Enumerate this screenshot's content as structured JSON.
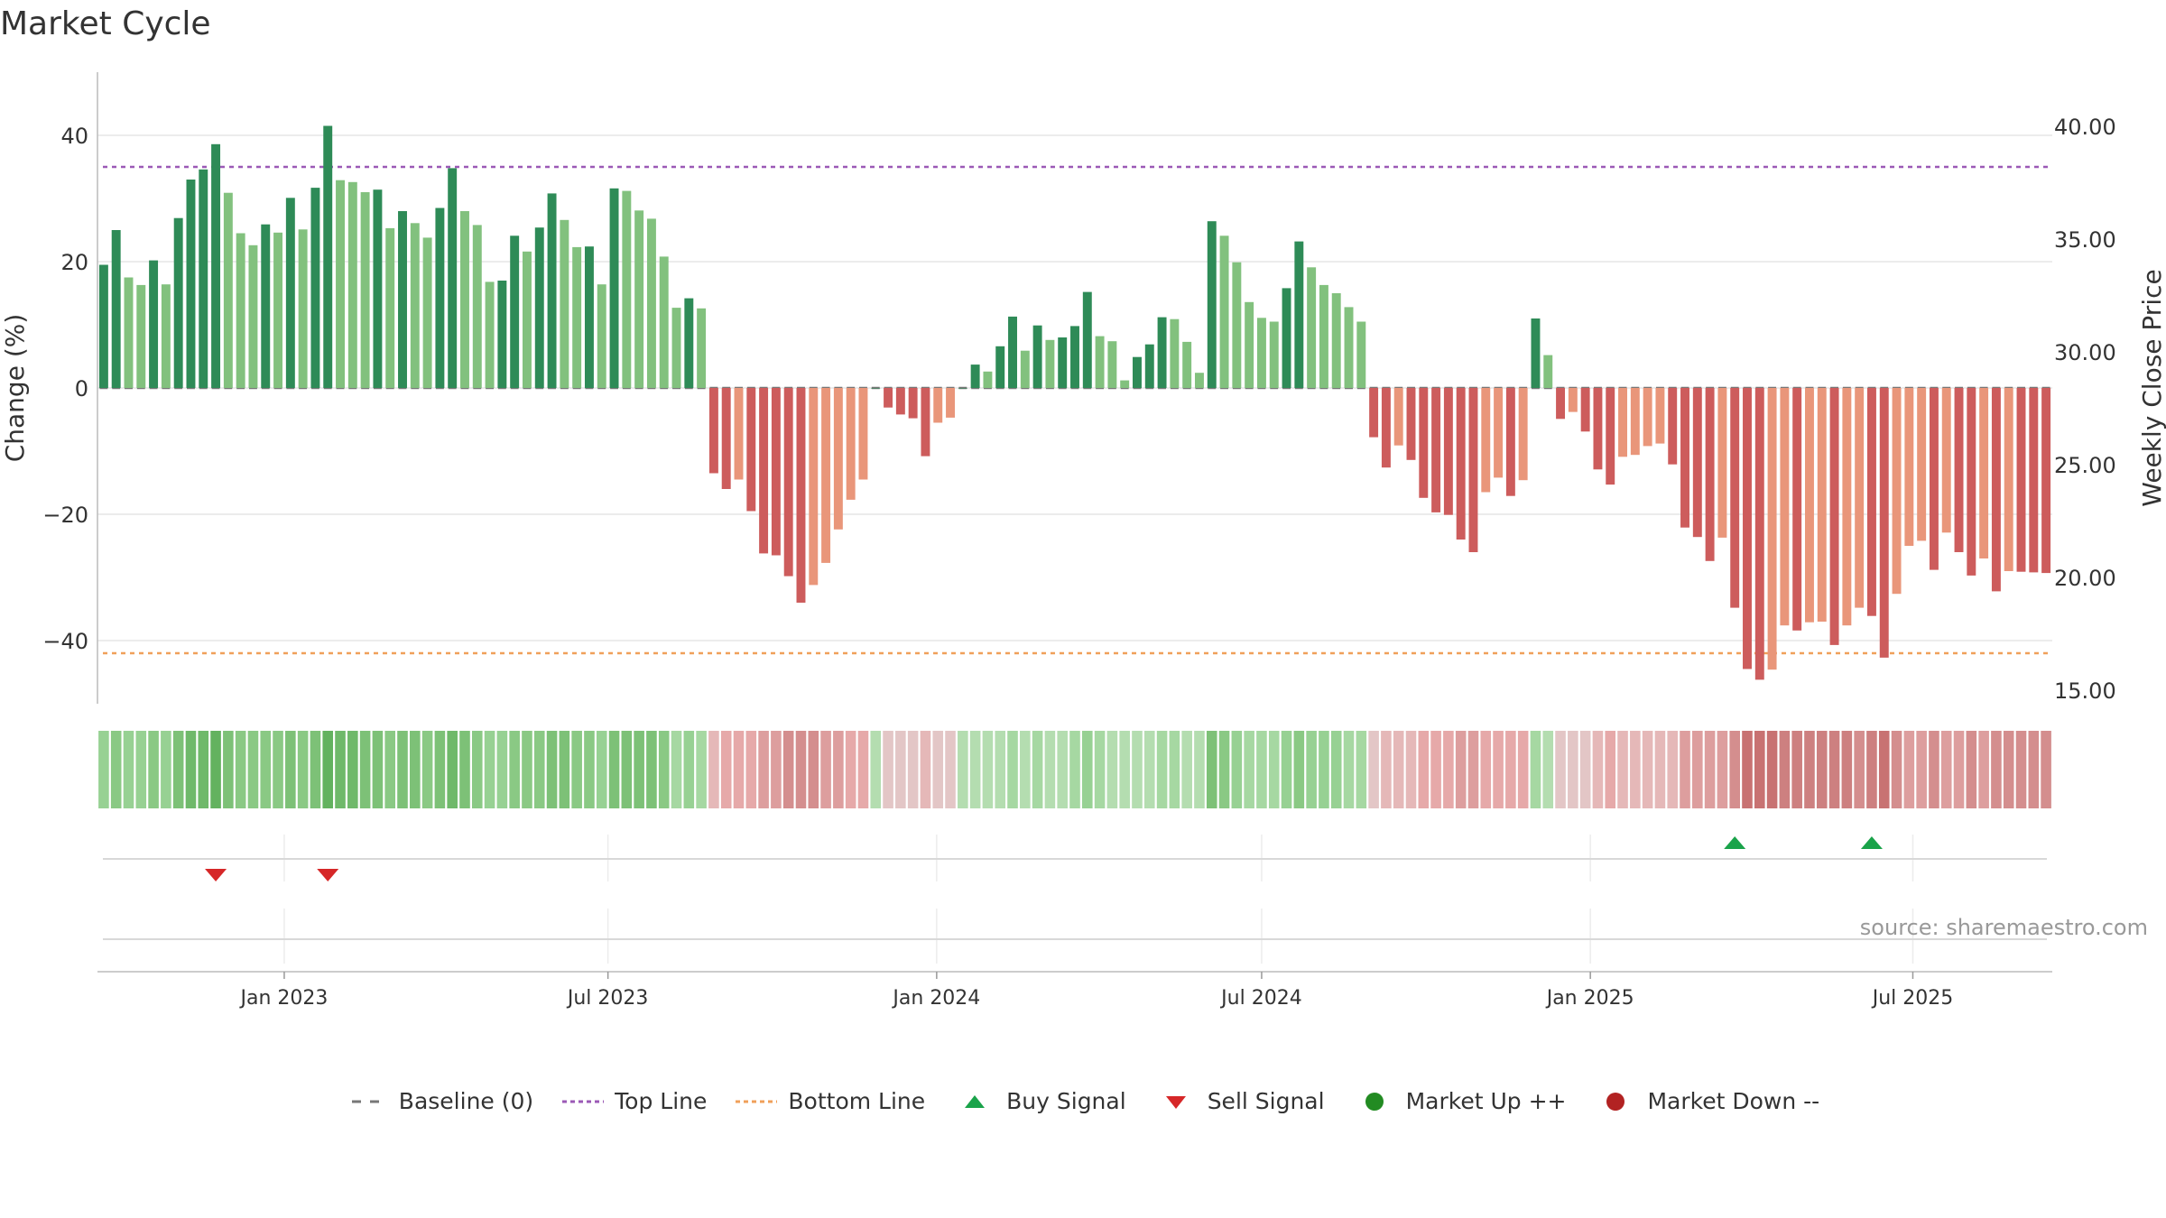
{
  "chart_data": {
    "type": "bar",
    "title": "Market Cycle",
    "ylabel": "Change (%)",
    "y2label": "Weekly Close Price",
    "ylim": [
      -50,
      50
    ],
    "y2lim": [
      14.4,
      42.4
    ],
    "yticks": [
      -40,
      -20,
      0,
      20,
      40
    ],
    "ytick_labels": [
      "−40",
      "−20",
      "0",
      "20",
      "40"
    ],
    "y2ticks": [
      15,
      20,
      25,
      30,
      35,
      40
    ],
    "y2tick_labels": [
      "15.00",
      "20.00",
      "25.00",
      "30.00",
      "35.00",
      "40.00"
    ],
    "xticks": [
      {
        "label": "Jan 2023",
        "week": 14.5
      },
      {
        "label": "Jul 2023",
        "week": 40.5
      },
      {
        "label": "Jan 2024",
        "week": 66.9
      },
      {
        "label": "Jul 2024",
        "week": 93.0
      },
      {
        "label": "Jan 2025",
        "week": 119.4
      },
      {
        "label": "Jul 2025",
        "week": 145.3
      }
    ],
    "top_line": 35,
    "bottom_line": -42,
    "values": [
      19.5,
      25,
      17.5,
      16.3,
      20.2,
      16.4,
      26.9,
      33,
      34.6,
      38.6,
      30.9,
      24.5,
      22.6,
      25.9,
      24.6,
      30.1,
      25.1,
      31.7,
      41.5,
      32.9,
      32.6,
      31.0,
      31.4,
      25.3,
      28,
      26.1,
      23.8,
      28.5,
      34.8,
      28,
      25.8,
      16.8,
      17,
      24.1,
      21.6,
      25.4,
      30.8,
      26.6,
      22.3,
      22.4,
      16.4,
      31.6,
      31.2,
      28.1,
      26.8,
      20.8,
      12.7,
      14.2,
      12.6,
      -13.5,
      -16,
      -14.5,
      -19.5,
      -26.2,
      -26.5,
      -29.8,
      -34,
      -31.2,
      -27.7,
      -22.4,
      -17.7,
      -14.5,
      0,
      -3.1,
      -4.2,
      -4.8,
      -10.8,
      -5.5,
      -4.7,
      0,
      3.7,
      2.6,
      6.6,
      11.3,
      5.9,
      9.9,
      7.6,
      8.0,
      9.8,
      15.2,
      8.2,
      7.4,
      1.2,
      4.9,
      6.9,
      11.2,
      10.9,
      7.3,
      2.4,
      26.4,
      24.1,
      19.9,
      13.6,
      11.1,
      10.5,
      15.8,
      23.2,
      19.1,
      16.3,
      15.0,
      12.8,
      10.5,
      -7.8,
      -12.6,
      -9.1,
      -11.4,
      -17.4,
      -19.7,
      -20.1,
      -24,
      -26,
      -16.5,
      -14.2,
      -17.1,
      -14.6,
      11,
      5.2,
      -4.9,
      -3.8,
      -6.9,
      -12.9,
      -15.3,
      -10.9,
      -10.6,
      -9.2,
      -8.8,
      -12.1,
      -22.1,
      -23.6,
      -27.4,
      -23.7,
      -34.8,
      -44.5,
      -46.2,
      -44.6,
      -37.6,
      -38.4,
      -37.1,
      -37,
      -40.7,
      -37.6,
      -34.8,
      -36.1,
      -42.7,
      -32.6,
      -25,
      -24.2,
      -28.8,
      -22.9,
      -26,
      -29.7,
      -27,
      -32.2,
      -29,
      -29.1,
      -29.2,
      -29.3
    ],
    "colors": [
      "#2e8b57",
      "#82c17e",
      "#cd5c5c",
      "#e9967a"
    ],
    "heat_colors": [
      "#a6d8a2",
      "#97d193",
      "#8ac984",
      "#7dc177",
      "#6fb96a",
      "#63b25f",
      "#5fae5c",
      "#e6a9a9",
      "#dd9e9e",
      "#d48e8e",
      "#cd8080",
      "#c87272",
      "#be6565",
      "#e5b8b8",
      "#e3c6c6",
      "#e8d4d4",
      "#c5e4c2",
      "#b4ddb0"
    ],
    "buy_signals": [
      131,
      142
    ],
    "sell_signals": [
      9,
      18
    ]
  },
  "title": "Market Cycle",
  "source": "source: sharemaestro.com",
  "legend": [
    {
      "label": "Baseline (0)",
      "icon": "dash-gray",
      "color": "#777777"
    },
    {
      "label": "Top Line",
      "icon": "dotted-purple",
      "color": "#9b59b6"
    },
    {
      "label": "Bottom Line",
      "icon": "dotted-orange",
      "color": "#f0a05a"
    },
    {
      "label": "Buy Signal",
      "icon": "triangle-up",
      "color": "#1aa34a"
    },
    {
      "label": "Sell Signal",
      "icon": "triangle-down",
      "color": "#d62728"
    },
    {
      "label": "Market Up ++",
      "icon": "circle",
      "color": "#228b22"
    },
    {
      "label": "Market Down --",
      "icon": "circle",
      "color": "#b22222"
    }
  ]
}
